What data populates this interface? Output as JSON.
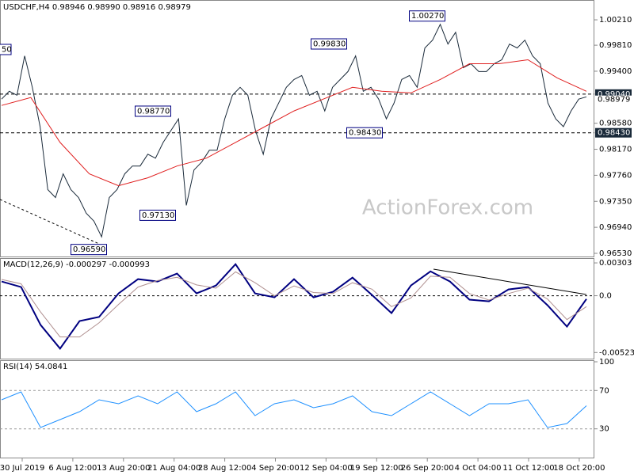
{
  "header": "USDCHF,H4  0.98946 0.98990 0.98916 0.98979",
  "watermark": "ActionForex.com",
  "xlabels": [
    "30 Jul 2019",
    "6 Aug 12:00",
    "13 Aug 20:00",
    "21 Aug 04:00",
    "28 Aug 12:00",
    "4 Sep 20:00",
    "12 Sep 04:00",
    "19 Sep 12:00",
    "26 Sep 20:00",
    "4 Oct 04:00",
    "11 Oct 12:00",
    "18 Oct 20:00"
  ],
  "chart_data": [
    {
      "type": "line",
      "panel": "price",
      "ylim": [
        0.9648,
        1.0051
      ],
      "yticks": [
        {
          "value": 1.0021,
          "label": "1.00210"
        },
        {
          "value": 0.9981,
          "label": "0.99810"
        },
        {
          "value": 0.994,
          "label": "0.99400"
        },
        {
          "value": 0.9858,
          "label": "0.98580"
        },
        {
          "value": 0.9817,
          "label": "0.98170"
        },
        {
          "value": 0.9776,
          "label": "0.97760"
        },
        {
          "value": 0.9735,
          "label": "0.97350"
        },
        {
          "value": 0.9694,
          "label": "0.96940"
        },
        {
          "value": 0.9653,
          "label": "0.96530"
        }
      ],
      "series": [
        {
          "name": "USDCHF",
          "color": "#1a2a3a",
          "values": [
            0.9896,
            0.99084,
            0.99022,
            0.99642,
            0.99146,
            0.98526,
            0.97534,
            0.9741,
            0.97782,
            0.97534,
            0.9741,
            0.97162,
            0.97038,
            0.9679,
            0.9741,
            0.97534,
            0.97782,
            0.97906,
            0.97906,
            0.98092,
            0.9803,
            0.98278,
            0.98464,
            0.9865,
            0.97286,
            0.97844,
            0.97968,
            0.98154,
            0.98154,
            0.9865,
            0.99022,
            0.99146,
            0.99022,
            0.98464,
            0.98092,
            0.9865,
            0.98898,
            0.99146,
            0.9927,
            0.99332,
            0.99022,
            0.99084,
            0.98774,
            0.99146,
            0.9927,
            0.99394,
            0.99642,
            0.99084,
            0.99146,
            0.9896,
            0.9865,
            0.98898,
            0.9927,
            0.99332,
            0.99146,
            0.99766,
            0.9989,
            1.00138,
            0.99828,
            1.00014,
            0.99456,
            0.99518,
            0.99394,
            0.99394,
            0.99518,
            0.9958,
            0.99828,
            0.99766,
            0.9989,
            0.99642,
            0.99518,
            0.98898,
            0.9865,
            0.98526,
            0.98774,
            0.9896,
            0.98997
          ]
        },
        {
          "name": "MA",
          "color": "#e02020",
          "values": [
            0.98861,
            0.98985,
            0.98278,
            0.97782,
            0.97596,
            0.9772,
            0.97906,
            0.9803,
            0.98278,
            0.98526,
            0.98774,
            0.9896,
            0.99146,
            0.99084,
            0.99059,
            0.9927,
            0.99518,
            0.99518,
            0.9958,
            0.99295,
            0.99084
          ]
        }
      ],
      "annotations": [
        {
          "value": 0.9877,
          "label": "0.98770"
        },
        {
          "value": 0.9983,
          "label": "0.99830"
        },
        {
          "value": 1.0027,
          "label": "1.00270"
        },
        {
          "value": 0.9843,
          "label": "0.98430"
        },
        {
          "value": 0.9713,
          "label": "0.97130"
        },
        {
          "value": 0.9659,
          "label": "0.96590"
        }
      ],
      "edge_label": "50",
      "hlines": [
        {
          "value": 0.9904,
          "label": "0.99040"
        },
        {
          "value": 0.9843,
          "label": "0.98430"
        }
      ],
      "last_price": {
        "value": 0.98979,
        "label": "0.98979"
      }
    },
    {
      "type": "line",
      "panel": "macd",
      "title": "MACD(12,26,9) -0.000297 -0.000993",
      "ylim": [
        -0.0058,
        0.0034
      ],
      "yticks": [
        0.00303,
        {
          "value": 0,
          "label": "0.0"
        },
        -0.005236
      ],
      "series": [
        {
          "name": "MACD",
          "color": "#000080",
          "values": [
            0.00131,
            0.0008,
            -0.00269,
            -0.00487,
            -0.00233,
            -0.00196,
            0.00022,
            0.00153,
            0.00131,
            0.00204,
            0.00022,
            0.00095,
            0.00291,
            0.00022,
            -0.00015,
            0.00153,
            -0.00015,
            0.00036,
            0.00167,
            7e-05,
            -0.0016,
            0.00095,
            0.00225,
            0.00131,
            -0.00036,
            -0.00051,
            0.00058,
            0.0008,
            -0.00087,
            -0.00284,
            -0.0003
          ]
        },
        {
          "name": "Signal",
          "color": "#b09090",
          "values": [
            0.0015,
            0.0011,
            -0.0015,
            -0.0038,
            -0.0038,
            -0.0025,
            -0.0008,
            0.0008,
            0.0014,
            0.0017,
            0.001,
            0.0007,
            0.0022,
            0.0012,
            0,
            0.0009,
            0.0003,
            0.0002,
            0.0012,
            0.0006,
            -0.001,
            -0.0002,
            0.0018,
            0.0017,
            0.0002,
            -0.0004,
            0.0002,
            0.0007,
            -0.0003,
            -0.0022,
            -0.001
          ]
        }
      ]
    },
    {
      "type": "line",
      "panel": "rsi",
      "title": "RSI(14) 54.0841",
      "ylim": [
        0,
        100
      ],
      "yticks": [
        100,
        70,
        30
      ],
      "levels": [
        70,
        30
      ],
      "series": [
        {
          "name": "RSI",
          "color": "#1e90ff",
          "values": [
            60.3,
            68.6,
            31.4,
            39.7,
            47.9,
            60.3,
            56.2,
            64.5,
            56.2,
            68.6,
            47.9,
            56.2,
            68.6,
            43.8,
            56.2,
            60.3,
            52.1,
            56.2,
            64.5,
            47.9,
            43.8,
            56.2,
            68.6,
            56.2,
            43.8,
            56.2,
            56.2,
            60.3,
            31.4,
            35.5,
            54.1
          ]
        }
      ]
    }
  ]
}
